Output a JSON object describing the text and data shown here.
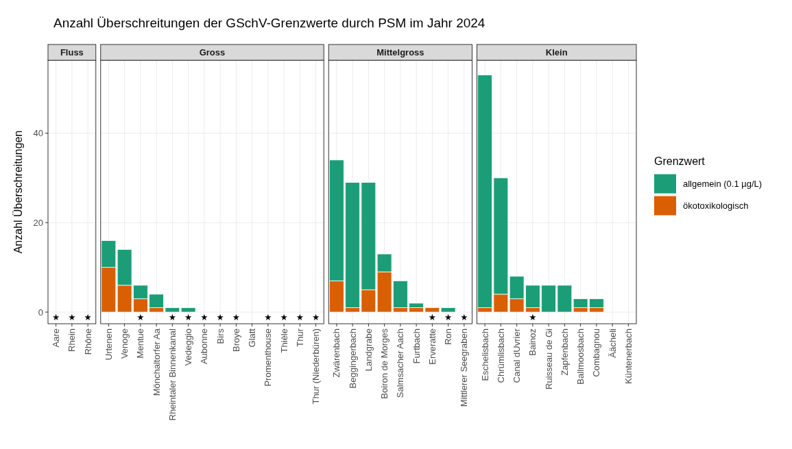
{
  "chart_data": [
    {
      "type": "bar",
      "title": "Anzahl Überschreitungen der GSchV-Grenzwerte durch PSM im Jahr 2024",
      "subtitle": "Fluss",
      "ylabel": "Anzahl Überschreitungen",
      "categories": [
        "Aare",
        "Rhein",
        "Rhône"
      ],
      "stacked": true,
      "ylim": [
        -2.6,
        56.3
      ],
      "yticks": [
        0,
        20,
        40
      ],
      "grid": true,
      "legend": "right",
      "legend_title": "Grenzwert",
      "series": [
        {
          "name": "ökotoxikologisch",
          "color": "#d95f02",
          "values": [
            0,
            0,
            0
          ]
        },
        {
          "name": "allgemein (0.1 µg/L)",
          "color": "#1b9e77",
          "values": [
            0,
            0,
            0
          ]
        },
        {
          "type": "scatter",
          "marker": "star",
          "color": "#000000",
          "x": [
            "Aare",
            "Rhein",
            "Rhône"
          ],
          "values": [
            -1.2,
            -1.2,
            -1.2
          ]
        }
      ]
    },
    {
      "type": "bar",
      "subtitle": "Gross",
      "categories": [
        "Urtenen",
        "Venoge",
        "Mentue",
        "Mönchaltorfer Aa",
        "Rheintaler Binnenkanal",
        "Vedeggio",
        "Aubonne",
        "Birs",
        "Broye",
        "Glatt",
        "Promenthouse",
        "Thièle",
        "Thur",
        "Thur (Niederbüren)"
      ],
      "stacked": true,
      "ylim": [
        -2.6,
        56.3
      ],
      "yticks": [
        0,
        20,
        40
      ],
      "tick_labels": "x",
      "grid": true,
      "series": [
        {
          "color": "#d95f02",
          "values": [
            10,
            6,
            3,
            1,
            0,
            0,
            0,
            0,
            0,
            0,
            0,
            0,
            0,
            0
          ]
        },
        {
          "color": "#1b9e77",
          "values": [
            6,
            8,
            3,
            3,
            1,
            1,
            0,
            0,
            0,
            0,
            0,
            0,
            0,
            0
          ]
        },
        {
          "type": "scatter",
          "marker": "star",
          "color": "#000000",
          "x": [
            "Mentue",
            "Rheintaler Binnenkanal",
            "Vedeggio",
            "Aubonne",
            "Birs",
            "Broye",
            "Promenthouse",
            "Thièle",
            "Thur",
            "Thur (Niederbüren)"
          ],
          "values": [
            -1.2,
            -1.2,
            -1.2,
            -1.2,
            -1.2,
            -1.2,
            -1.2,
            -1.2,
            -1.2,
            -1.2
          ]
        }
      ]
    },
    {
      "type": "bar",
      "subtitle": "Mittelgross",
      "categories": [
        "Zwärenbach",
        "Beggingerbach",
        "Landgrabe",
        "Boiron de Morges",
        "Salmsacher Aach",
        "Furtbach",
        "Erveratte",
        "Ron",
        "Mittlerer Seegraben"
      ],
      "stacked": true,
      "ylim": [
        -2.6,
        56.3
      ],
      "yticks": [
        0,
        20,
        40
      ],
      "tick_labels": "x",
      "grid": true,
      "series": [
        {
          "color": "#d95f02",
          "values": [
            7,
            1,
            5,
            9,
            1,
            1,
            1,
            0,
            0
          ]
        },
        {
          "color": "#1b9e77",
          "values": [
            27,
            28,
            24,
            4,
            6,
            1,
            0,
            1,
            0
          ]
        },
        {
          "type": "scatter",
          "marker": "star",
          "color": "#000000",
          "x": [
            "Erveratte",
            "Ron",
            "Mittlerer Seegraben"
          ],
          "values": [
            -1.2,
            -1.2,
            -1.2
          ]
        }
      ]
    },
    {
      "type": "bar",
      "subtitle": "Klein",
      "categories": [
        "Eschelisbach",
        "Chrümlisbach",
        "Canal dUvrier",
        "Bainoz",
        "Ruisseau de Gi",
        "Zapfenbach",
        "Ballmoosbach",
        "Combagnou",
        "Äächeli",
        "Küntenerbach"
      ],
      "stacked": true,
      "ylim": [
        -2.6,
        56.3
      ],
      "yticks": [
        0,
        20,
        40
      ],
      "tick_labels": "x",
      "grid": true,
      "series": [
        {
          "color": "#d95f02",
          "values": [
            1,
            4,
            3,
            1,
            0,
            0,
            1,
            1,
            0,
            0
          ]
        },
        {
          "color": "#1b9e77",
          "values": [
            52,
            26,
            5,
            5,
            6,
            6,
            2,
            2,
            0,
            0
          ]
        },
        {
          "type": "scatter",
          "marker": "star",
          "color": "#000000",
          "x": [
            "Bainoz"
          ],
          "values": [
            -1.2
          ]
        }
      ]
    }
  ]
}
